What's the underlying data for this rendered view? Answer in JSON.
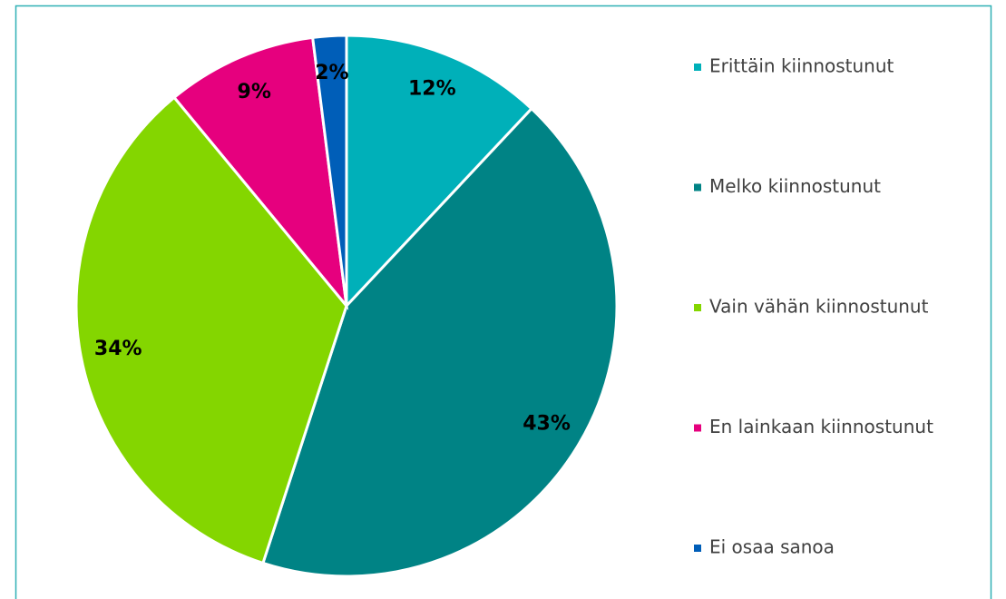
{
  "chart_data": {
    "type": "pie",
    "categories": [
      "Erittäin kiinnostunut",
      "Melko kiinnostunut",
      "Vain vähän kiinnostunut",
      "En lainkaan kiinnostunut",
      "Ei osaa sanoa"
    ],
    "values": [
      12,
      43,
      34,
      9,
      2
    ],
    "value_labels": [
      "12%",
      "43%",
      "34%",
      "9%",
      "2%"
    ],
    "colors": [
      "#00b0b9",
      "#008385",
      "#84d600",
      "#e6007e",
      "#005eb8"
    ],
    "legend": "right"
  }
}
